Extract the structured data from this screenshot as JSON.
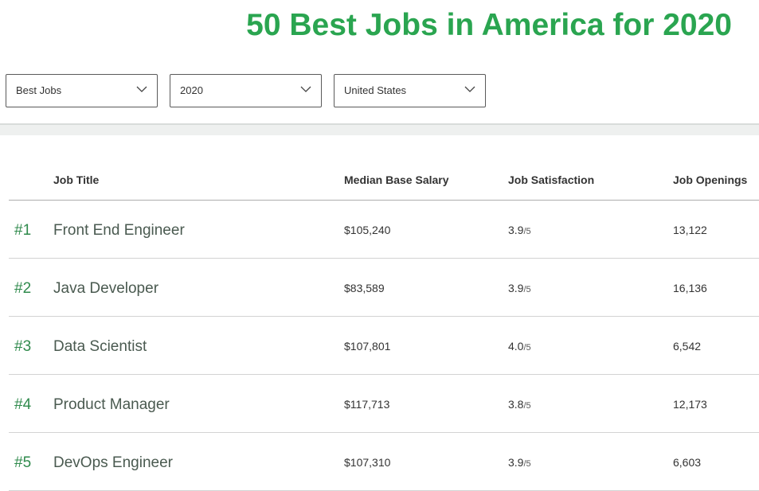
{
  "page": {
    "title": "50 Best Jobs in America for 2020"
  },
  "filters": {
    "list": {
      "value": "Best Jobs",
      "icon": "chevron-down-icon"
    },
    "year": {
      "value": "2020",
      "icon": "chevron-down-icon"
    },
    "country": {
      "value": "United States",
      "icon": "chevron-down-icon"
    }
  },
  "table": {
    "headers": {
      "title": "Job Title",
      "salary": "Median Base Salary",
      "satisfaction": "Job Satisfaction",
      "openings": "Job Openings"
    },
    "rows": [
      {
        "rank": "#1",
        "title": "Front End Engineer",
        "salary": "$105,240",
        "satisfaction": "3.9",
        "satisfaction_scale": "/5",
        "openings": "13,122"
      },
      {
        "rank": "#2",
        "title": "Java Developer",
        "salary": "$83,589",
        "satisfaction": "3.9",
        "satisfaction_scale": "/5",
        "openings": "16,136"
      },
      {
        "rank": "#3",
        "title": "Data Scientist",
        "salary": "$107,801",
        "satisfaction": "4.0",
        "satisfaction_scale": "/5",
        "openings": "6,542"
      },
      {
        "rank": "#4",
        "title": "Product Manager",
        "salary": "$117,713",
        "satisfaction": "3.8",
        "satisfaction_scale": "/5",
        "openings": "12,173"
      },
      {
        "rank": "#5",
        "title": "DevOps Engineer",
        "salary": "$107,310",
        "satisfaction": "3.9",
        "satisfaction_scale": "/5",
        "openings": "6,603"
      }
    ]
  },
  "colors": {
    "title_green": "#2aa550",
    "rank_green": "#2f8a4c"
  }
}
